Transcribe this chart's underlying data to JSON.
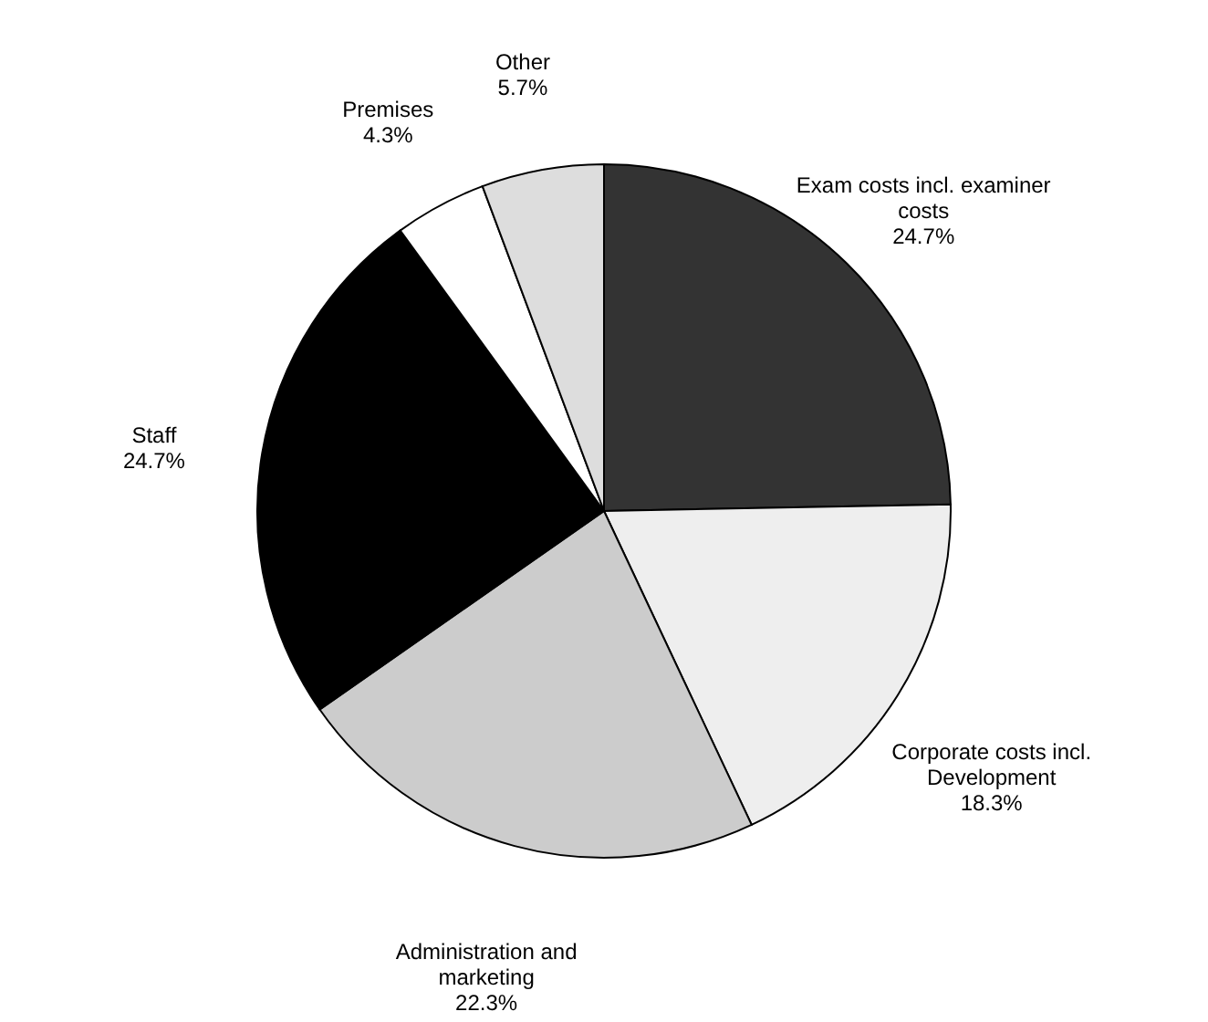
{
  "chart_data": {
    "type": "pie",
    "categories": [
      "Exam costs incl. examiner costs",
      "Corporate costs incl. Development",
      "Administration and marketing",
      "Staff",
      "Premises",
      "Other"
    ],
    "values": [
      24.7,
      18.3,
      22.3,
      24.7,
      4.3,
      5.7
    ],
    "colors": [
      "#333333",
      "#eeeeee",
      "#cccccc",
      "#000000",
      "#ffffff",
      "#dddddd"
    ],
    "value_labels": [
      "24.7%",
      "18.3%",
      "22.3%",
      "24.7%",
      "4.3%",
      "5.7%"
    ]
  }
}
